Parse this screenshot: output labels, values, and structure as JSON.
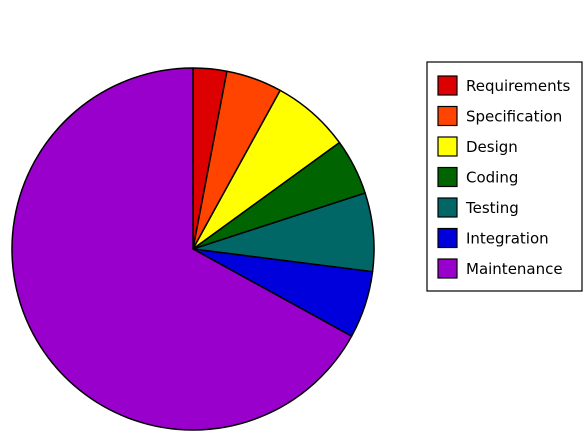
{
  "chart_data": {
    "type": "pie",
    "title": "",
    "legend_position": "right",
    "start": "12 o'clock",
    "direction": "clockwise",
    "slices": [
      {
        "label": "Requirements",
        "value": 3,
        "color": "#dd0000"
      },
      {
        "label": "Specification",
        "value": 5,
        "color": "#ff4400"
      },
      {
        "label": "Design",
        "value": 7,
        "color": "#ffff00"
      },
      {
        "label": "Coding",
        "value": 5,
        "color": "#006400"
      },
      {
        "label": "Testing",
        "value": 7,
        "color": "#006666"
      },
      {
        "label": "Integration",
        "value": 6,
        "color": "#0000dd"
      },
      {
        "label": "Maintenance",
        "value": 67,
        "color": "#9900cc"
      }
    ]
  }
}
